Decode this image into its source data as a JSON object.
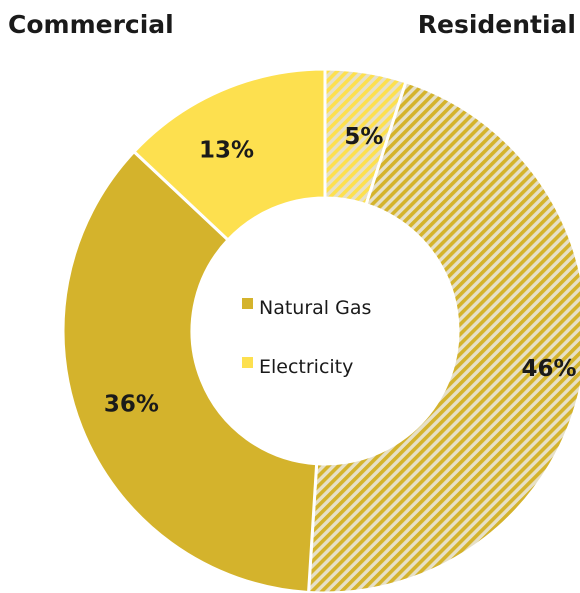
{
  "groups": {
    "left": "Commercial",
    "right": "Residential"
  },
  "legend": [
    {
      "label": "Natural Gas",
      "color": "#d4b32c"
    },
    {
      "label": "Electricity",
      "color": "#fde04f"
    }
  ],
  "chart_data": {
    "type": "pie",
    "style": "donut",
    "slices": [
      {
        "group": "Residential",
        "source": "Electricity",
        "value": 5,
        "label": "5%",
        "pattern": "hatched",
        "color": "#fde04f"
      },
      {
        "group": "Residential",
        "source": "Natural Gas",
        "value": 46,
        "label": "46%",
        "pattern": "hatched",
        "color": "#d4b32c"
      },
      {
        "group": "Commercial",
        "source": "Natural Gas",
        "value": 36,
        "label": "36%",
        "pattern": "solid",
        "color": "#d4b32c"
      },
      {
        "group": "Commercial",
        "source": "Electricity",
        "value": 13,
        "label": "13%",
        "pattern": "solid",
        "color": "#fde04f"
      }
    ]
  }
}
